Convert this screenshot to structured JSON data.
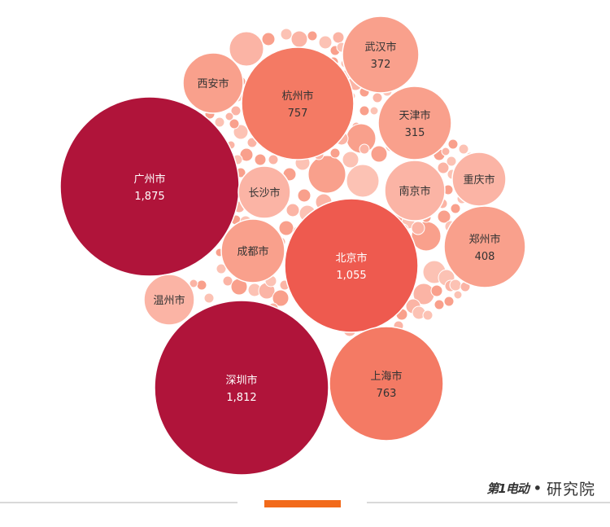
{
  "chart_data": {
    "type": "bubble",
    "title": "",
    "colors": {
      "dark": "#b0143a",
      "mid": "#ee5a4f",
      "salmon": "#f47a64",
      "light": "#f9a08c",
      "pale": "#fbb4a5"
    },
    "points": [
      {
        "label": "广州市",
        "value": 1875,
        "value_text": "1,875"
      },
      {
        "label": "深圳市",
        "value": 1812,
        "value_text": "1,812"
      },
      {
        "label": "北京市",
        "value": 1055,
        "value_text": "1,055"
      },
      {
        "label": "上海市",
        "value": 763,
        "value_text": "763"
      },
      {
        "label": "杭州市",
        "value": 757,
        "value_text": "757"
      },
      {
        "label": "郑州市",
        "value": 408,
        "value_text": "408"
      },
      {
        "label": "武汉市",
        "value": 372,
        "value_text": "372"
      },
      {
        "label": "天津市",
        "value": 315,
        "value_text": "315"
      },
      {
        "label": "西安市",
        "value_text": ""
      },
      {
        "label": "长沙市",
        "value_text": ""
      },
      {
        "label": "成都市",
        "value_text": ""
      },
      {
        "label": "南京市",
        "value_text": ""
      },
      {
        "label": "重庆市",
        "value_text": ""
      },
      {
        "label": "温州市",
        "value_text": ""
      }
    ]
  },
  "brand": {
    "logo_text": "第1电动",
    "separator": "•",
    "institute": "研究院"
  }
}
